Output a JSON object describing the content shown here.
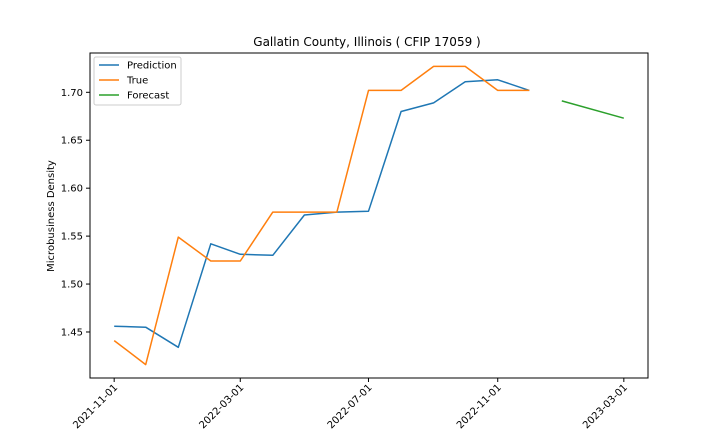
{
  "chart_data": {
    "type": "line",
    "title": "Gallatin County, Illinois ( CFIP 17059 )",
    "xlabel": "",
    "ylabel": "Microbusiness Density",
    "x_ticks": [
      "2021-11-01",
      "2022-03-01",
      "2022-07-01",
      "2022-11-01",
      "2023-03-01"
    ],
    "y_ticks": [
      "1.45",
      "1.50",
      "1.55",
      "1.60",
      "1.65",
      "1.70"
    ],
    "ylim": [
      1.402,
      1.741
    ],
    "xlim": [
      "2021-10-09",
      "2023-03-24"
    ],
    "grid": false,
    "legend_position": "top-left",
    "series": [
      {
        "name": "Prediction",
        "color": "#1f77b4",
        "x": [
          "2021-11-01",
          "2021-12-01",
          "2022-01-01",
          "2022-02-01",
          "2022-03-01",
          "2022-04-01",
          "2022-05-01",
          "2022-06-01",
          "2022-07-01",
          "2022-08-01",
          "2022-09-01",
          "2022-10-01",
          "2022-11-01",
          "2022-12-01"
        ],
        "values": [
          1.456,
          1.455,
          1.434,
          1.542,
          1.531,
          1.53,
          1.572,
          1.575,
          1.576,
          1.68,
          1.689,
          1.711,
          1.713,
          1.702
        ]
      },
      {
        "name": "True",
        "color": "#ff7f0e",
        "x": [
          "2021-11-01",
          "2021-12-01",
          "2022-01-01",
          "2022-02-01",
          "2022-03-01",
          "2022-04-01",
          "2022-05-01",
          "2022-06-01",
          "2022-07-01",
          "2022-08-01",
          "2022-09-01",
          "2022-10-01",
          "2022-11-01",
          "2022-12-01"
        ],
        "values": [
          1.441,
          1.416,
          1.549,
          1.524,
          1.524,
          1.575,
          1.575,
          1.575,
          1.702,
          1.702,
          1.727,
          1.727,
          1.702,
          1.702
        ]
      },
      {
        "name": "Forecast",
        "color": "#2ca02c",
        "x": [
          "2023-01-01",
          "2023-03-01"
        ],
        "values": [
          1.691,
          1.673
        ]
      }
    ]
  }
}
